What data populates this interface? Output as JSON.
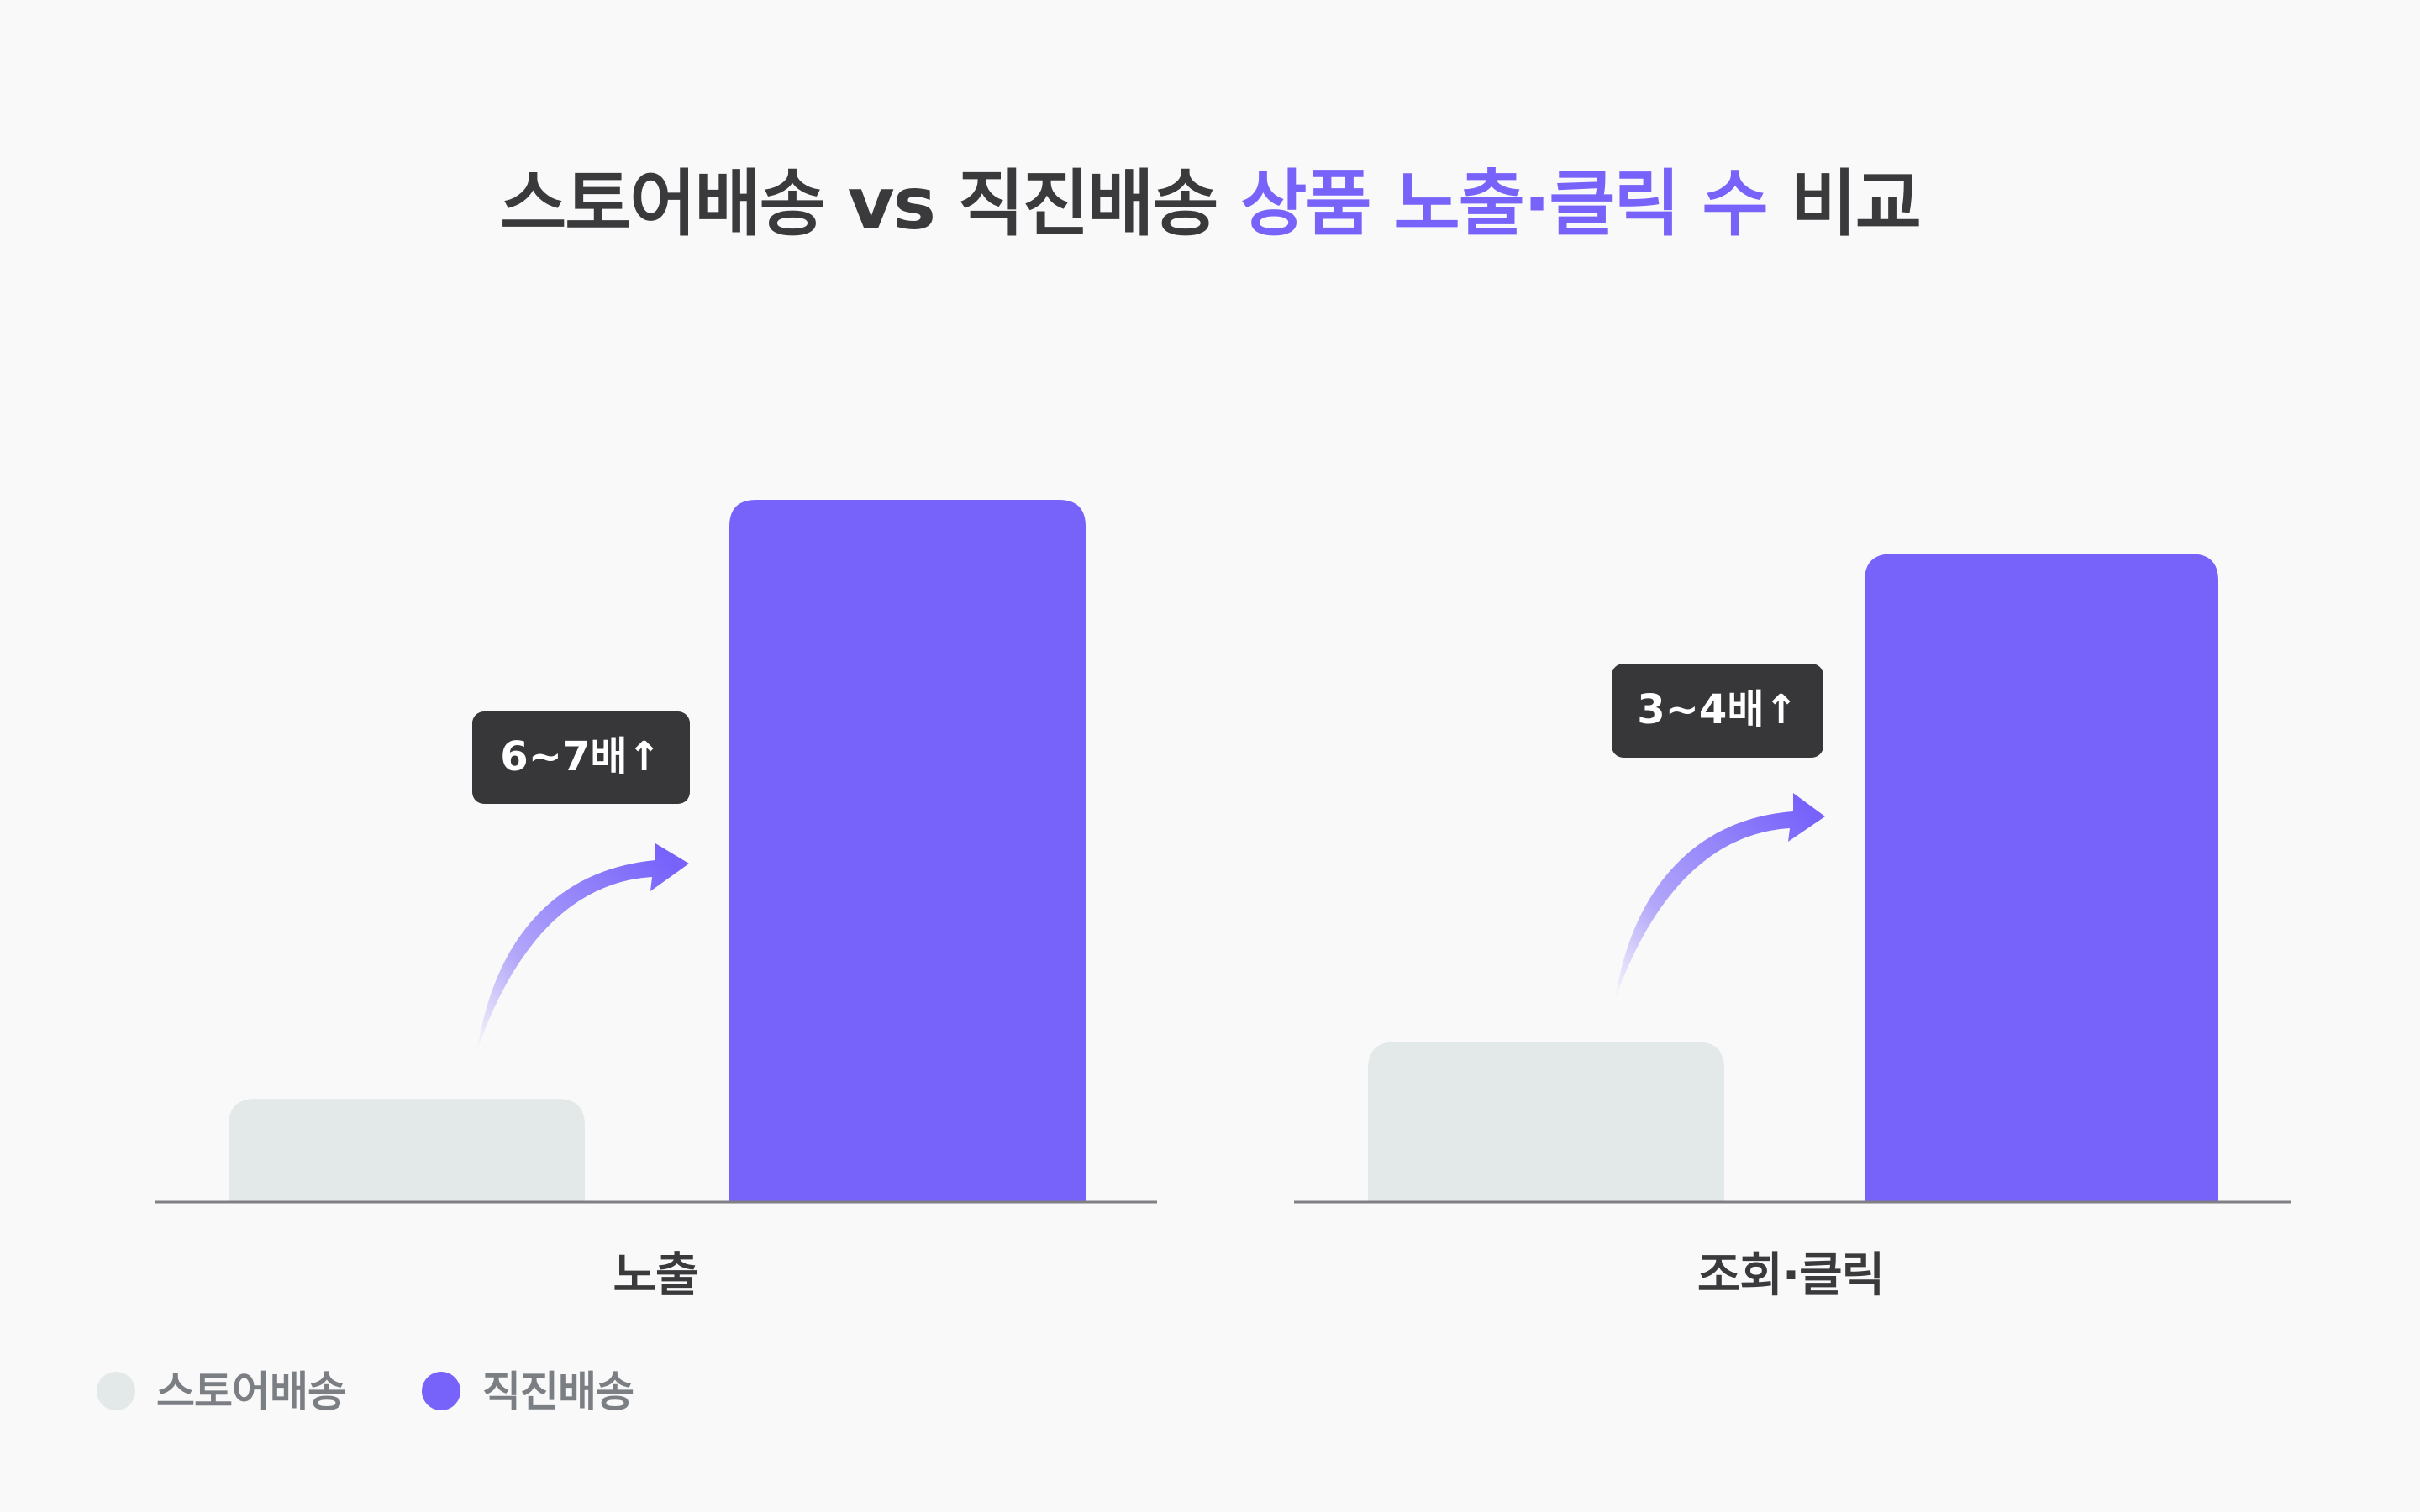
{
  "colors": {
    "background": "#f9f9f9",
    "store_delivery": "#e3e8e8",
    "direct_delivery": "#7763fa",
    "title_dark": "#3a3a3d",
    "title_accent": "#7763fa",
    "badge_bg": "#37373a",
    "axis": "#7f7f85",
    "legend_text": "#7b7f84"
  },
  "title": {
    "part1": "스토어배송 vs 직진배송 ",
    "part2": "상품 노출·클릭 수",
    "part3": " 비교"
  },
  "legend": [
    {
      "label": "스토어배송",
      "color": "#e3e8e8"
    },
    {
      "label": "직진배송",
      "color": "#7763fa"
    }
  ],
  "chart_data": [
    {
      "type": "bar",
      "categories": [
        "노출"
      ],
      "series": [
        {
          "name": "스토어배송",
          "values": [
            14.7
          ]
        },
        {
          "name": "직진배송",
          "values": [
            100
          ]
        }
      ],
      "annotation": "6~7배↑",
      "ylim": [
        0,
        100
      ],
      "grid": false,
      "legend": "bottom-left"
    },
    {
      "type": "bar",
      "categories": [
        "조회·클릭"
      ],
      "series": [
        {
          "name": "스토어배송",
          "values": [
            22.8
          ]
        },
        {
          "name": "직진배송",
          "values": [
            92.3
          ]
        }
      ],
      "annotation": "3~4배↑",
      "ylim": [
        0,
        100
      ],
      "grid": false,
      "legend": "bottom-left"
    }
  ]
}
